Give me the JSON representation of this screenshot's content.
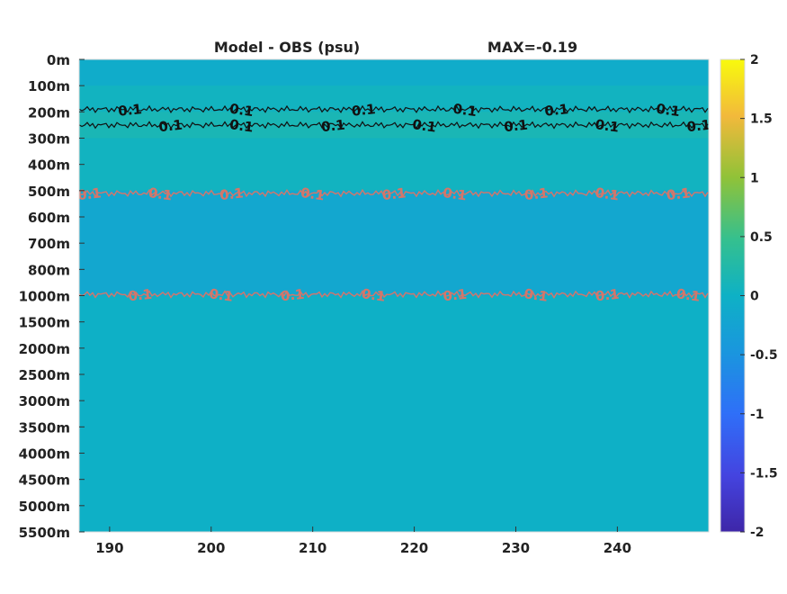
{
  "chart_data": {
    "type": "heatmap",
    "title": "Model - OBS (psu)",
    "subtitle": "MAX=-0.19",
    "xlabel": "",
    "ylabel": "",
    "x_ticks": [
      190,
      200,
      210,
      220,
      230,
      240
    ],
    "xlim": [
      187,
      249
    ],
    "y_tick_labels": [
      "0m",
      "100m",
      "200m",
      "300m",
      "400m",
      "500m",
      "600m",
      "700m",
      "800m",
      "1000m",
      "1500m",
      "2000m",
      "2500m",
      "3000m",
      "3500m",
      "4000m",
      "4500m",
      "5000m",
      "5500m"
    ],
    "colorbar": {
      "colormap": "parula",
      "range": [
        -2,
        2
      ],
      "tick_labels": [
        "2",
        "1.5",
        "1",
        "0.5",
        "0",
        "-0.5",
        "-1",
        "-1.5",
        "-2"
      ]
    },
    "depth_bands": [
      {
        "depth_range": [
          "0m",
          "100m"
        ],
        "value": -0.1
      },
      {
        "depth_range": [
          "100m",
          "200m"
        ],
        "value": 0.05
      },
      {
        "depth_range": [
          "200m",
          "300m"
        ],
        "value": 0.15
      },
      {
        "depth_range": [
          "300m",
          "500m"
        ],
        "value": 0.05
      },
      {
        "depth_range": [
          "500m",
          "1000m"
        ],
        "value": -0.19
      },
      {
        "depth_range": [
          "1000m",
          "5500m"
        ],
        "value": -0.02
      }
    ],
    "contours": [
      {
        "depth": "190m",
        "level": 0.1,
        "color": "#111111",
        "labels": [
          {
            "x": 192,
            "text": "0.1"
          },
          {
            "x": 203,
            "text": "0.1"
          },
          {
            "x": 215,
            "text": "0.1"
          },
          {
            "x": 225,
            "text": "0.1"
          },
          {
            "x": 234,
            "text": "0.1"
          },
          {
            "x": 245,
            "text": "0.1"
          }
        ]
      },
      {
        "depth": "250m",
        "level": 0.1,
        "color": "#111111",
        "labels": [
          {
            "x": 196,
            "text": "0.1"
          },
          {
            "x": 203,
            "text": "0.1"
          },
          {
            "x": 212,
            "text": "0.1"
          },
          {
            "x": 221,
            "text": "0.1"
          },
          {
            "x": 230,
            "text": "0.1"
          },
          {
            "x": 239,
            "text": "0.1"
          },
          {
            "x": 248,
            "text": "0.1"
          }
        ]
      },
      {
        "depth": "510m",
        "level": -0.1,
        "color": "#d4766a",
        "labels": [
          {
            "x": 188,
            "text": "0.1"
          },
          {
            "x": 195,
            "text": "0.1"
          },
          {
            "x": 202,
            "text": "0.1"
          },
          {
            "x": 210,
            "text": "0.1"
          },
          {
            "x": 218,
            "text": "0.1"
          },
          {
            "x": 224,
            "text": "0.1"
          },
          {
            "x": 232,
            "text": "0.1"
          },
          {
            "x": 239,
            "text": "0.1"
          },
          {
            "x": 246,
            "text": "0.1"
          }
        ]
      },
      {
        "depth": "990m",
        "level": -0.1,
        "color": "#d4766a",
        "labels": [
          {
            "x": 193,
            "text": "0.1"
          },
          {
            "x": 201,
            "text": "0.1"
          },
          {
            "x": 208,
            "text": "0.1"
          },
          {
            "x": 216,
            "text": "0.1"
          },
          {
            "x": 224,
            "text": "0.1"
          },
          {
            "x": 232,
            "text": "0.1"
          },
          {
            "x": 239,
            "text": "0.1"
          },
          {
            "x": 247,
            "text": "0.1"
          }
        ]
      }
    ],
    "grid": false,
    "legend": "colorbar-right"
  }
}
